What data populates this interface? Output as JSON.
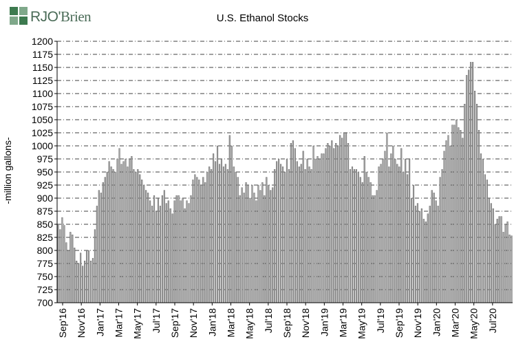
{
  "logo": {
    "brand_left": "RJO",
    "brand_right": "Brien",
    "apostrophe": "'"
  },
  "chart_data": {
    "type": "bar",
    "title": "U.S. Ethanol Stocks",
    "xlabel": "",
    "ylabel": "-million gallons-",
    "ylim": [
      700,
      1200
    ],
    "yticks": [
      700,
      725,
      750,
      775,
      800,
      825,
      850,
      875,
      900,
      925,
      950,
      975,
      1000,
      1025,
      1050,
      1075,
      1100,
      1125,
      1150,
      1175,
      1200
    ],
    "grid": "horizontal-dashed",
    "x_tick_labels": [
      "Sep'16",
      "Nov'16",
      "Jan'17",
      "Mar'17",
      "May'17",
      "Jul'17",
      "Sep'17",
      "Nov'17",
      "Jan'18",
      "Mar'18",
      "May'18",
      "Jul'18",
      "Sep'18",
      "Nov'18",
      "Jan'19",
      "Mar'19",
      "May'19",
      "Jul'19",
      "Sep'19",
      "Nov'19",
      "Jan'20",
      "Mar'20",
      "May'20",
      "Jul'20"
    ],
    "bar_color": "#a6a6a6",
    "values": [
      850,
      840,
      863,
      848,
      815,
      800,
      835,
      830,
      805,
      780,
      775,
      795,
      770,
      780,
      800,
      800,
      780,
      785,
      840,
      885,
      915,
      910,
      930,
      940,
      950,
      970,
      960,
      955,
      950,
      975,
      995,
      965,
      970,
      975,
      960,
      975,
      980,
      955,
      950,
      955,
      945,
      935,
      925,
      915,
      910,
      895,
      885,
      905,
      875,
      900,
      885,
      905,
      915,
      890,
      895,
      880,
      870,
      895,
      905,
      905,
      895,
      900,
      880,
      895,
      890,
      905,
      935,
      945,
      940,
      935,
      925,
      940,
      930,
      950,
      960,
      955,
      985,
      970,
      1000,
      965,
      975,
      960,
      965,
      955,
      1020,
      1000,
      960,
      950,
      940,
      905,
      920,
      910,
      930,
      925,
      900,
      925,
      910,
      895,
      925,
      915,
      930,
      905,
      940,
      925,
      915,
      920,
      955,
      970,
      975,
      965,
      960,
      950,
      975,
      955,
      1005,
      1010,
      995,
      970,
      960,
      965,
      990,
      955,
      975,
      960,
      955,
      1000,
      975,
      980,
      975,
      985,
      985,
      995,
      1005,
      1000,
      1010,
      995,
      1005,
      1000,
      1020,
      1015,
      1025,
      1025,
      1005,
      955,
      960,
      955,
      955,
      950,
      940,
      930,
      980,
      950,
      940,
      930,
      905,
      905,
      915,
      960,
      965,
      975,
      990,
      1025,
      960,
      985,
      1000,
      975,
      965,
      960,
      995,
      950,
      975,
      945,
      975,
      900,
      925,
      885,
      890,
      875,
      880,
      860,
      855,
      870,
      885,
      915,
      910,
      895,
      885,
      940,
      955,
      990,
      1010,
      1020,
      1000,
      1040,
      1040,
      1050,
      1035,
      1030,
      1015,
      1080,
      1135,
      1145,
      1160,
      1160,
      1105,
      1080,
      1030,
      985,
      975,
      945,
      935,
      900,
      890,
      880,
      850,
      860,
      865,
      865,
      835,
      850,
      855,
      830,
      828
    ]
  }
}
